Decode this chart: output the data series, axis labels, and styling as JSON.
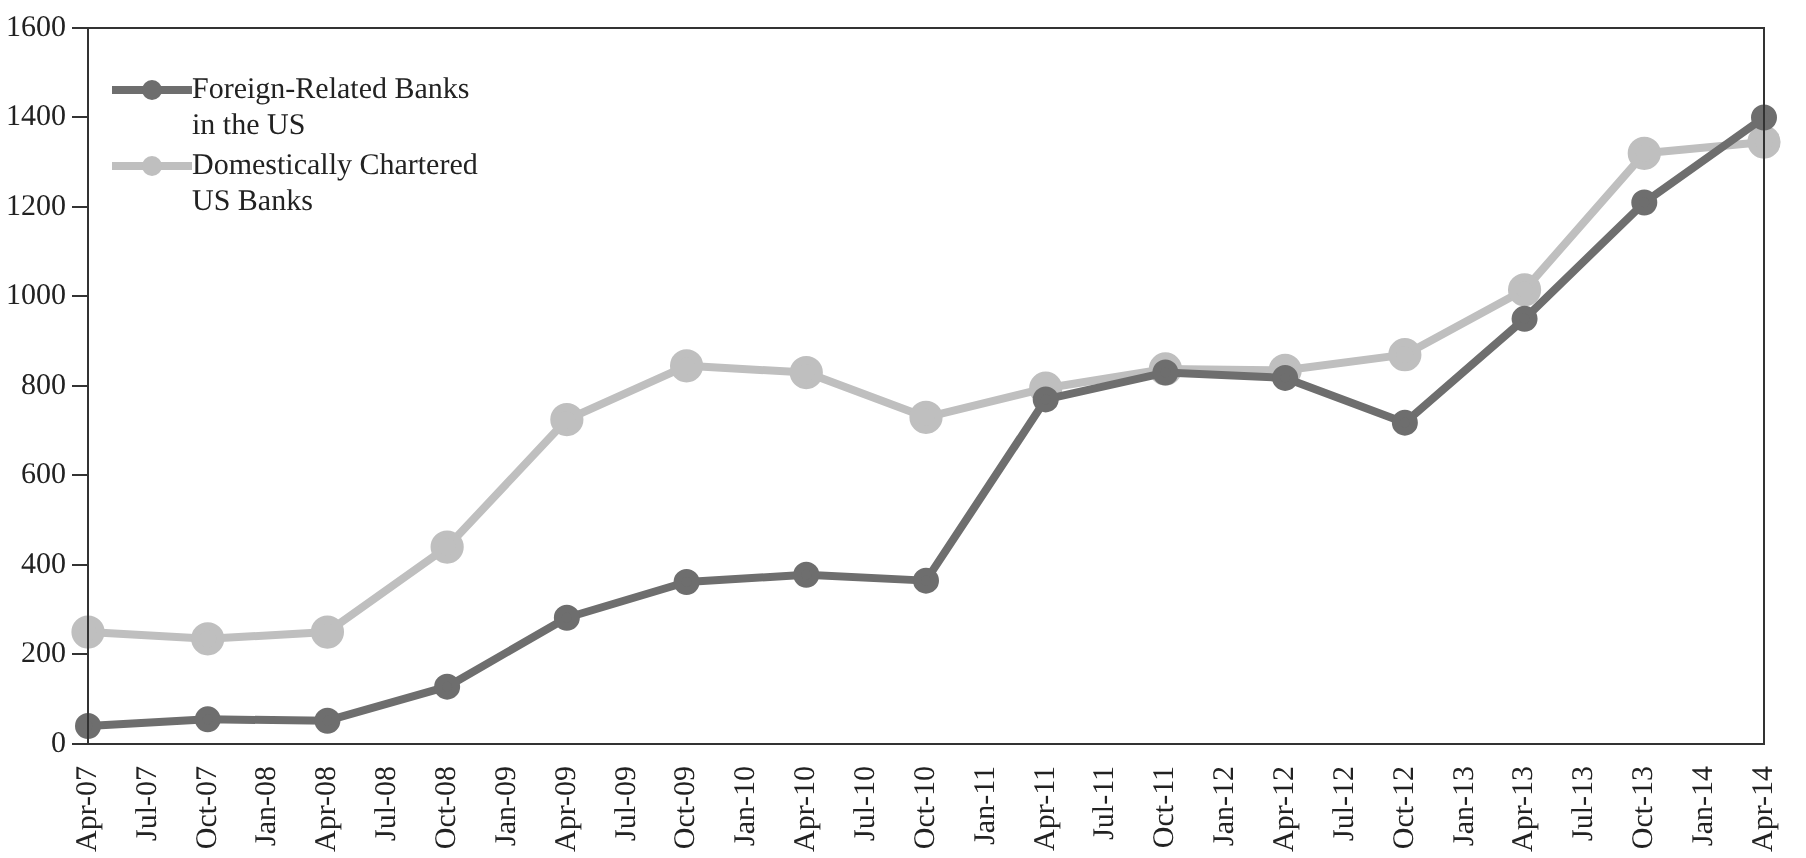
{
  "chart_data": {
    "type": "line",
    "categories": [
      "Apr-07",
      "Jul-07",
      "Oct-07",
      "Jan-08",
      "Apr-08",
      "Jul-08",
      "Oct-08",
      "Jan-09",
      "Apr-09",
      "Jul-09",
      "Oct-09",
      "Jan-10",
      "Apr-10",
      "Jul-10",
      "Oct-10",
      "Jan-11",
      "Apr-11",
      "Jul-11",
      "Oct-11",
      "Jan-12",
      "Apr-12",
      "Jul-12",
      "Oct-12",
      "Jan-13",
      "Apr-13",
      "Jul-13",
      "Oct-13",
      "Jan-14",
      "Apr-14"
    ],
    "series": [
      {
        "name": "Foreign-Related Banks in the US",
        "color": "#6e6e6e",
        "values": [
          40,
          null,
          55,
          null,
          52,
          null,
          128,
          null,
          282,
          null,
          362,
          null,
          378,
          null,
          365,
          null,
          770,
          null,
          830,
          null,
          818,
          null,
          718,
          null,
          950,
          null,
          1210,
          null,
          1400
        ]
      },
      {
        "name": "Domestically Chartered US Banks",
        "color": "#bfbfbf",
        "values": [
          250,
          null,
          235,
          null,
          250,
          null,
          440,
          null,
          725,
          null,
          845,
          null,
          830,
          null,
          730,
          null,
          795,
          null,
          838,
          null,
          835,
          null,
          870,
          null,
          1015,
          null,
          1320,
          null,
          1345
        ]
      }
    ],
    "ylim": [
      0,
      1600
    ],
    "yticks": [
      0,
      200,
      400,
      600,
      800,
      1000,
      1200,
      1400,
      1600
    ],
    "grid": false,
    "legend": "top left",
    "marker": "circle",
    "line_style": "solid"
  }
}
